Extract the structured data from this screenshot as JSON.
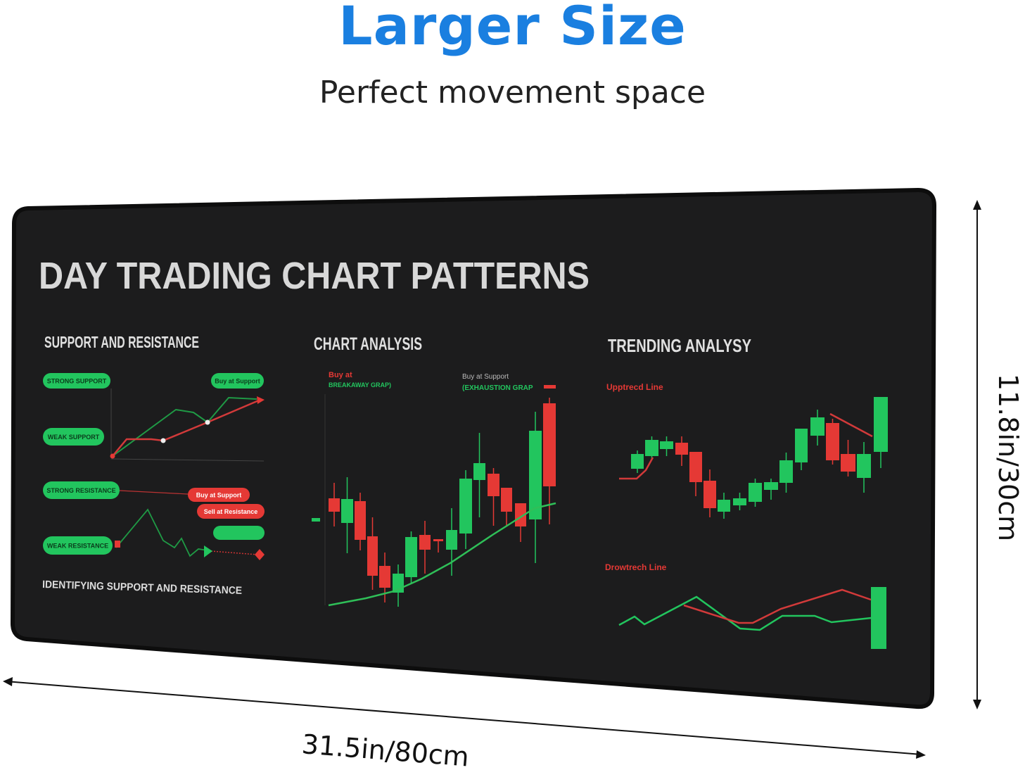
{
  "header": {
    "title": "Larger Size",
    "subtitle": "Perfect movement space"
  },
  "colors": {
    "accent": "#1a7fe0",
    "mat": "#1c1c1d",
    "bull": "#22c55e",
    "bear": "#e53935",
    "text": "#dcdcdc"
  },
  "mat": {
    "title": "DAY TRADING CHART PATTERNS",
    "support": {
      "heading": "SUPPORT AND RESISTANCE",
      "pills": [
        "STRONG SUPPORT",
        "WEAK SUPPORT",
        "STRONG RESISTANCE",
        "WEAK RESISTANCE"
      ],
      "buy_support_green": "Buy at Support",
      "buy_support_red": "Buy at Support",
      "sell_resistance": "Sell at Resistance",
      "footer": "IDENTIFYING SUPPORT AND RESISTANCE"
    },
    "analysis": {
      "heading": "CHART ANALYSIS",
      "label1_a": "Buy at",
      "label1_b": "BREAKAWAY GRAP)",
      "label2_a": "Buy at Support",
      "label2_b": "(EXHAUSTION GRAP"
    },
    "trending": {
      "heading": "TRENDING ANALYSY",
      "uptrend": "Upptrecd Line",
      "downtrend": "Drowtrech Line"
    }
  },
  "dimensions": {
    "height": "11.8in/30cm",
    "width": "31.5in/80cm"
  }
}
